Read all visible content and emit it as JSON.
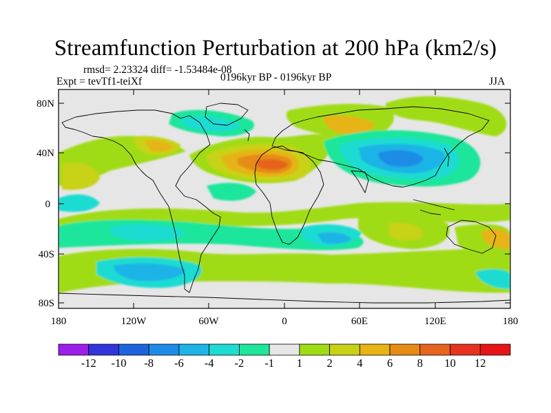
{
  "title": "Streamfunction Perturbation at 200 hPa (km2/s)",
  "stats_line": "rmsd= 2.23324 diff= -1.53484e-08",
  "expt_line": "Expt = tevTf1-teiXf",
  "period_line": "0196kyr BP - 0196kyr BP",
  "season": "JJA",
  "lat_ticks": [
    "80N",
    "40N",
    "0",
    "40S",
    "80S"
  ],
  "lon_ticks": [
    "180",
    "120W",
    "60W",
    "0",
    "60E",
    "120E",
    "180"
  ],
  "colorbar": {
    "labels": [
      "-12",
      "-10",
      "-8",
      "-6",
      "-4",
      "-2",
      "-1",
      "1",
      "2",
      "4",
      "6",
      "8",
      "10",
      "12"
    ],
    "colors": [
      "#9c1fea",
      "#3234dc",
      "#1e64dc",
      "#1e8ce6",
      "#1eb4e6",
      "#1edcd2",
      "#1ee69b",
      "#e6e6e6",
      "#a0dc14",
      "#c8d214",
      "#e6b414",
      "#e68c14",
      "#e6641e",
      "#e6321e",
      "#e61414"
    ]
  }
}
